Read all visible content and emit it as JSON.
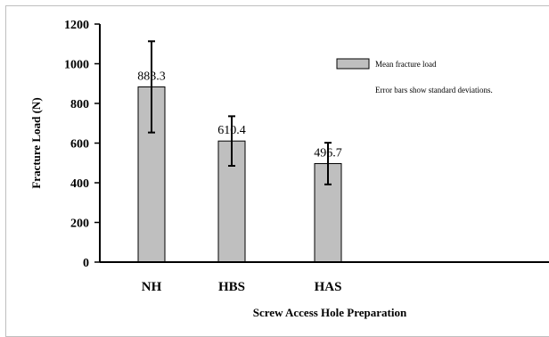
{
  "chart_data": {
    "type": "bar",
    "categories": [
      "NH",
      "HBS",
      "HAS"
    ],
    "series": [
      {
        "name": "Mean fracture load",
        "values": [
          883.3,
          610.4,
          496.7
        ],
        "errors": [
          230,
          125,
          105
        ],
        "data_labels": [
          "883.3",
          "610.4",
          "496.7"
        ]
      }
    ],
    "xlabel": "Screw Access Hole Preparation",
    "ylabel": "Fracture Load (N)",
    "ylim": [
      0,
      1200
    ],
    "yticks": [
      0,
      200,
      400,
      600,
      800,
      1000,
      1200
    ],
    "grid": false,
    "legend": {
      "placement": "top-right",
      "entry": "Mean fracture load",
      "note": "Error bars show standard deviations."
    },
    "colors": {
      "bar_fill": "#bfbfbf",
      "bar_stroke": "#000000",
      "axis": "#000000"
    }
  }
}
